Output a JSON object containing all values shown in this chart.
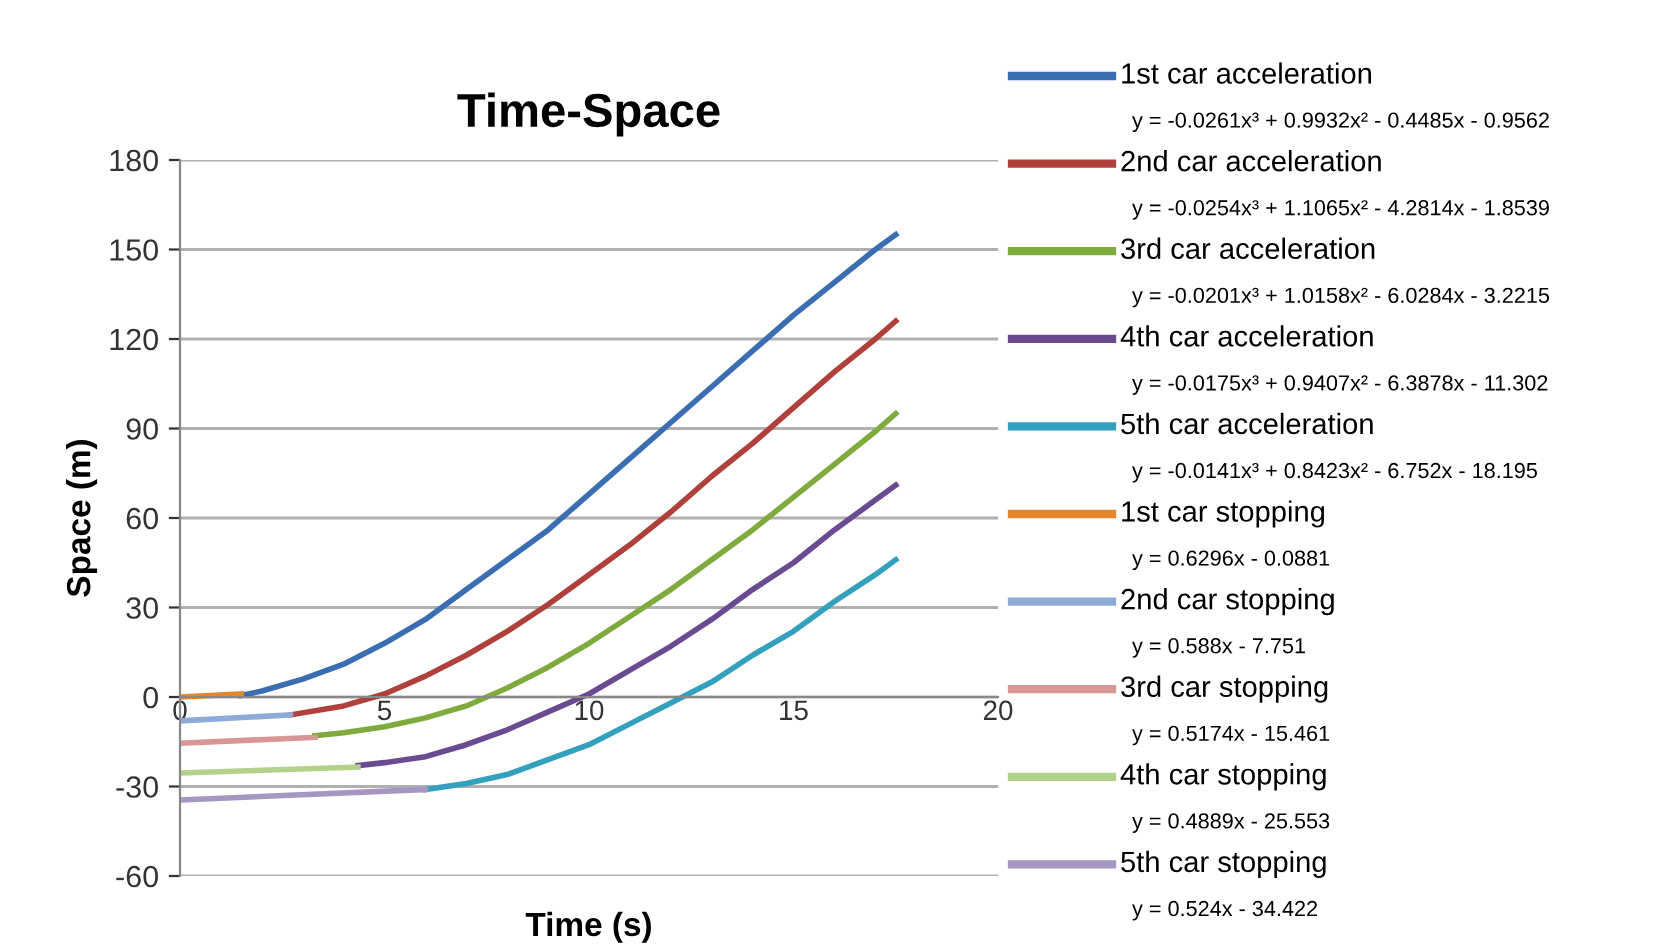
{
  "chart_data": {
    "type": "line",
    "title": "Time-Space",
    "xlabel": "Time (s)",
    "ylabel": "Space (m)",
    "xlim": [
      0,
      20
    ],
    "xticks": [
      0,
      5,
      10,
      15,
      20
    ],
    "ylim": [
      -60,
      180
    ],
    "yticks": [
      -60,
      -30,
      0,
      30,
      60,
      90,
      120,
      150,
      180
    ],
    "grid": "y",
    "legend": "right",
    "marker": "none",
    "line_style": "solid",
    "series": [
      {
        "name": "1st car acceleration",
        "color": "#3b6db3",
        "x": [
          1.5,
          2,
          3,
          4,
          5,
          6,
          7,
          8,
          9,
          10,
          11,
          12,
          13,
          14,
          15,
          16,
          17,
          17.5
        ],
        "values": [
          0.5,
          2,
          6,
          11,
          18,
          26,
          36,
          46,
          56,
          68,
          80,
          92,
          104,
          116,
          128,
          139,
          150,
          155
        ]
      },
      {
        "name": "2nd car acceleration",
        "color": "#b0403c",
        "x": [
          2.7,
          4,
          5,
          6,
          7,
          8,
          9,
          10,
          11,
          12,
          13,
          14,
          15,
          16,
          17,
          17.5
        ],
        "values": [
          -6,
          -3,
          1,
          7,
          14,
          22,
          31,
          41,
          51,
          62,
          74,
          85,
          97,
          109,
          120,
          126
        ]
      },
      {
        "name": "3rd car acceleration",
        "color": "#7fab3e",
        "x": [
          3.3,
          4,
          5,
          6,
          7,
          8,
          9,
          10,
          11,
          12,
          13,
          14,
          15,
          16,
          17,
          17.5
        ],
        "values": [
          -13,
          -12,
          -10,
          -7,
          -3,
          3,
          10,
          18,
          27,
          36,
          46,
          56,
          67,
          78,
          89,
          95
        ]
      },
      {
        "name": "4th car acceleration",
        "color": "#6a4a91",
        "x": [
          4.35,
          5,
          6,
          7,
          8,
          9,
          10,
          11,
          12,
          13,
          14,
          15,
          16,
          17,
          17.5
        ],
        "values": [
          -23,
          -22,
          -20,
          -16,
          -11,
          -5,
          1,
          9,
          17,
          26,
          36,
          45,
          56,
          66,
          71
        ]
      },
      {
        "name": "5th car acceleration",
        "color": "#33a0bd",
        "x": [
          6,
          7,
          8,
          9,
          10,
          11,
          12,
          13,
          14,
          15,
          16,
          17,
          17.5
        ],
        "values": [
          -31,
          -29,
          -26,
          -21,
          -16,
          -9,
          -2,
          5,
          14,
          22,
          32,
          41,
          46
        ]
      },
      {
        "name": "1st car stopping",
        "color": "#e5862e",
        "x": [
          0,
          1.5
        ],
        "values": [
          0,
          1
        ]
      },
      {
        "name": "2nd car stopping",
        "color": "#8eaad8",
        "x": [
          0,
          2.7
        ],
        "values": [
          -8,
          -6
        ]
      },
      {
        "name": "3rd car stopping",
        "color": "#d99694",
        "x": [
          0,
          3.3
        ],
        "values": [
          -15.5,
          -13.5
        ]
      },
      {
        "name": "4th car stopping",
        "color": "#b3d18a",
        "x": [
          0,
          4.35
        ],
        "values": [
          -25.5,
          -23.5
        ]
      },
      {
        "name": "5th car stopping",
        "color": "#a597c2",
        "x": [
          0,
          6
        ],
        "values": [
          -34.5,
          -31
        ]
      }
    ],
    "annotations": [
      "y = -0.0261x³ + 0.9932x² - 0.4485x - 0.9562",
      "y = -0.0254x³ + 1.1065x² - 4.2814x - 1.8539",
      "y = -0.0201x³ + 1.0158x² - 6.0284x - 3.2215",
      "y = -0.0175x³ + 0.9407x² - 6.3878x - 11.302",
      "y = -0.0141x³ + 0.8423x² - 6.752x - 18.195",
      "y = 0.6296x - 0.0881",
      "y = 0.588x - 7.751",
      "y = 0.5174x - 15.461",
      "y = 0.4889x - 25.553",
      "y = 0.524x - 34.422"
    ]
  }
}
